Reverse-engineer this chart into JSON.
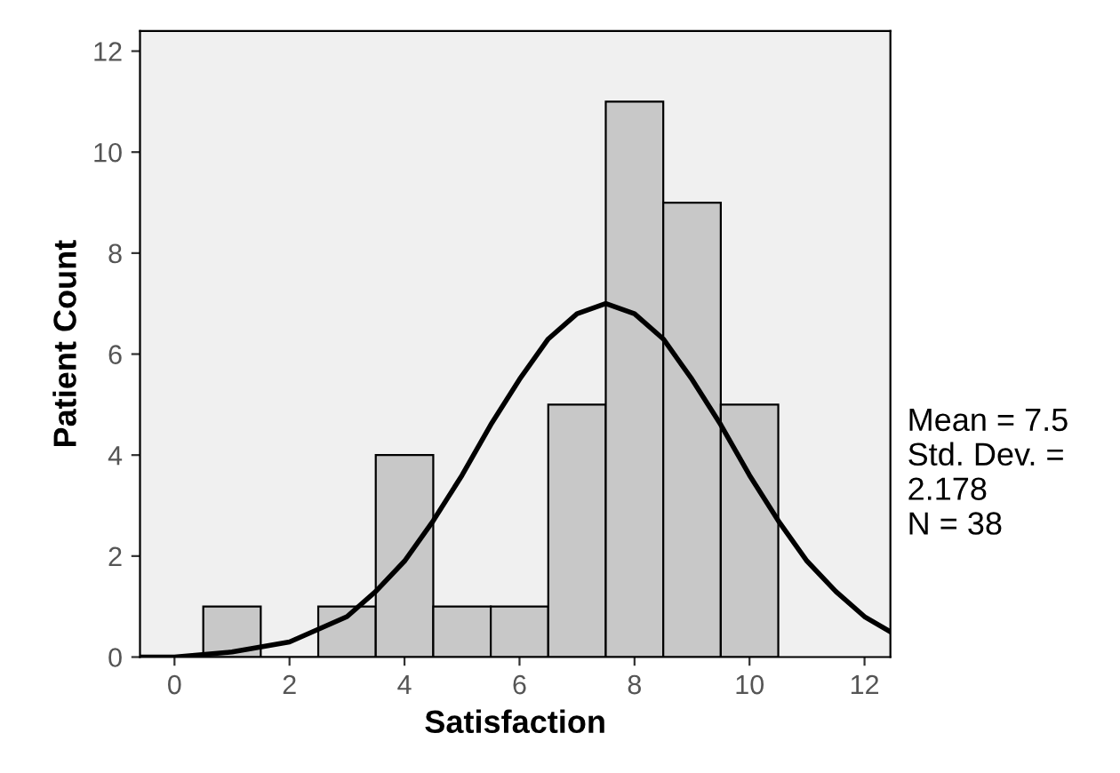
{
  "chart_data": {
    "type": "histogram",
    "xlabel": "Satisfaction",
    "ylabel": "Patient Count",
    "bins": [
      0.5,
      1.5,
      2.5,
      3.5,
      4.5,
      5.5,
      6.5,
      7.5,
      8.5,
      9.5,
      10.5
    ],
    "values": [
      1,
      0,
      1,
      4,
      1,
      1,
      5,
      11,
      9,
      5
    ],
    "color": "#c8c8c8",
    "series": [
      {
        "type": "line",
        "color": "#000000",
        "x": [
          -0.6,
          0,
          1,
          2,
          3,
          3.5,
          4,
          4.5,
          5,
          5.5,
          6,
          6.5,
          7,
          7.5,
          8,
          8.5,
          9,
          9.5,
          10,
          10.5,
          11,
          11.5,
          12,
          12.45
        ],
        "values": [
          0.0,
          0.0,
          0.1,
          0.3,
          0.8,
          1.3,
          1.9,
          2.7,
          3.6,
          4.6,
          5.5,
          6.3,
          6.8,
          7.0,
          6.8,
          6.3,
          5.5,
          4.6,
          3.6,
          2.7,
          1.9,
          1.3,
          0.8,
          0.5
        ]
      }
    ],
    "xlim": [
      -0.6,
      12.45
    ],
    "ylim": [
      0,
      12.4
    ],
    "xticks": [
      0,
      2,
      4,
      6,
      8,
      10,
      12
    ],
    "yticks": [
      0,
      2,
      4,
      6,
      8,
      10,
      12
    ],
    "annotations": [
      "Mean = 7.5\nStd. Dev. =\n2.178\nN = 38"
    ],
    "grid": false,
    "legend": false
  }
}
